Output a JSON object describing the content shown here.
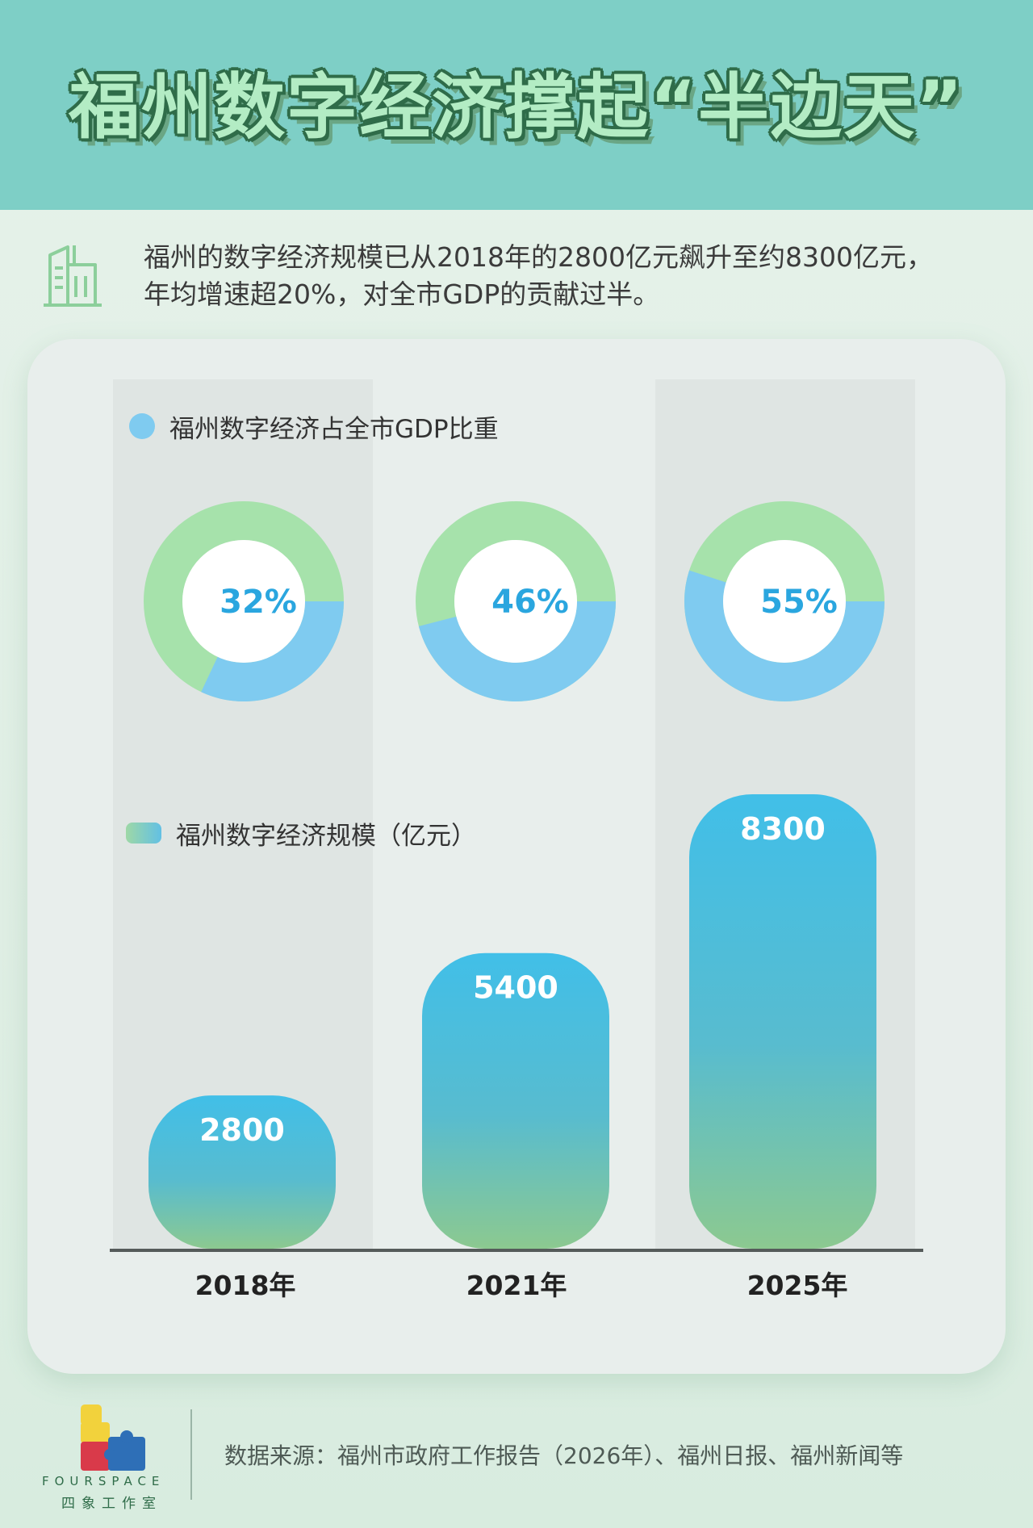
{
  "header": {
    "title": "福州数字经济撑起“半边天”"
  },
  "intro": {
    "line1": "福州的数字经济规模已从2018年的2800亿元飙升至约8300亿元，",
    "line2": "年均增速超20%，对全市GDP的贡献过半。"
  },
  "colors": {
    "header_bg": "#7ecfc6",
    "donut_share": "#7fcbf0",
    "donut_rest": "#a6e2ab",
    "bar_top": "#41bfe8",
    "bar_bottom": "#8cc990"
  },
  "chart_data": [
    {
      "type": "pie",
      "subtype": "donut",
      "legend": "福州数字经济占全市GDP比重",
      "categories": [
        "2018年",
        "2021年",
        "2025年"
      ],
      "values": [
        32,
        46,
        55
      ],
      "labels": [
        "32%",
        "46%",
        "55%"
      ],
      "unit": "%"
    },
    {
      "type": "bar",
      "legend": "福州数字经济规模（亿元）",
      "categories": [
        "2018年",
        "2021年",
        "2025年"
      ],
      "values": [
        2800,
        5400,
        8300
      ],
      "labels": [
        "2800",
        "5400",
        "8300"
      ],
      "ylim": [
        0,
        8300
      ]
    }
  ],
  "footer": {
    "logo_en": "FOURSPACE",
    "logo_cn": "四象工作室",
    "source": "数据来源：福州市政府工作报告（2026年）、福州日报、福州新闻等"
  }
}
